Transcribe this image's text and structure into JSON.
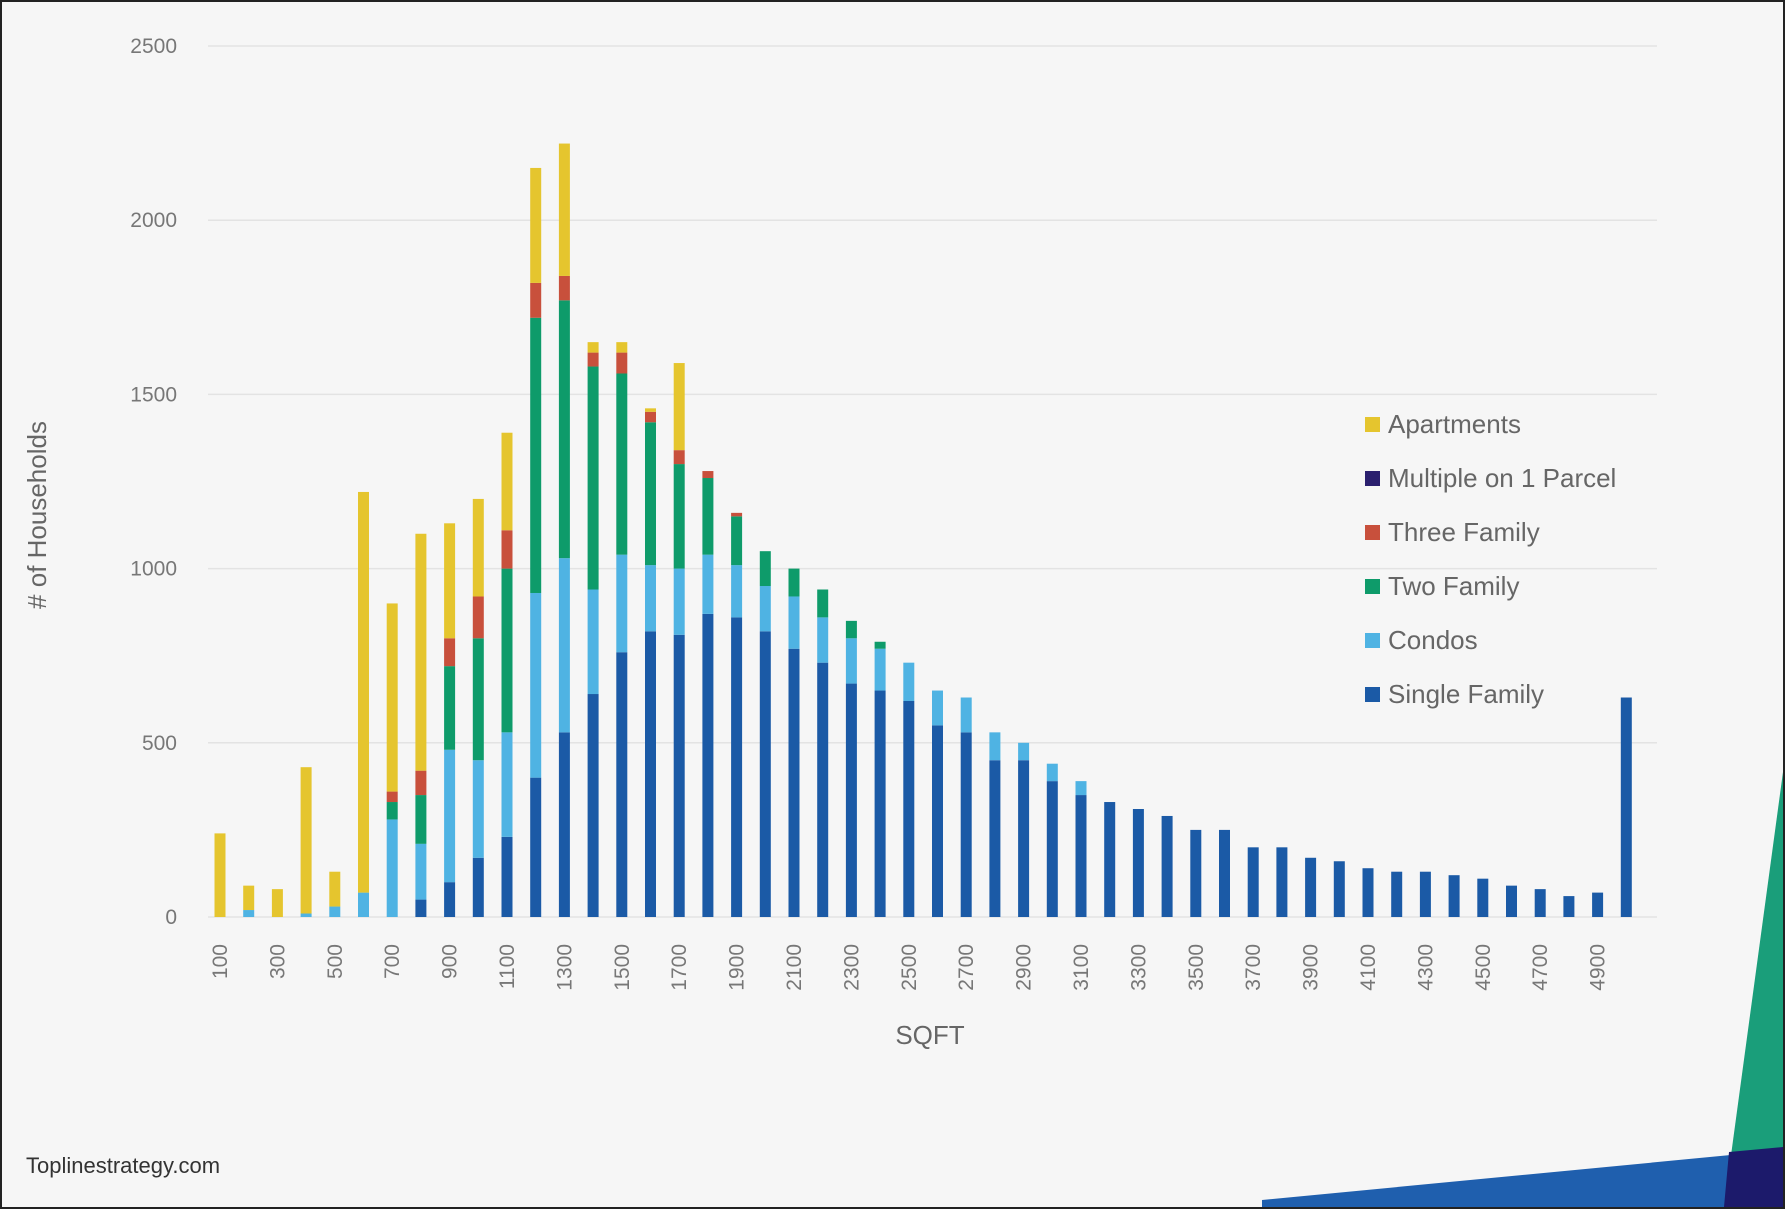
{
  "chart_data": {
    "type": "bar",
    "stacked": true,
    "xlabel": "SQFT",
    "ylabel": "# of Households",
    "ylim": [
      0,
      2500
    ],
    "yticks": [
      0,
      500,
      1000,
      1500,
      2000,
      2500
    ],
    "grid": true,
    "legend_position": "right",
    "source": "Toplinestrategy.com",
    "categories": [
      "100",
      "200",
      "300",
      "400",
      "500",
      "600",
      "700",
      "800",
      "900",
      "1000",
      "1100",
      "1200",
      "1300",
      "1400",
      "1500",
      "1600",
      "1700",
      "1800",
      "1900",
      "2000",
      "2100",
      "2200",
      "2300",
      "2400",
      "2500",
      "2600",
      "2700",
      "2800",
      "2900",
      "3000",
      "3100",
      "3200",
      "3300",
      "3400",
      "3500",
      "3600",
      "3700",
      "3800",
      "3900",
      "4000",
      "4100",
      "4200",
      "4300",
      "4400",
      "4500",
      "4600",
      "4700",
      "4800",
      "4900",
      "5000"
    ],
    "tick_labels": [
      "100",
      "300",
      "500",
      "700",
      "900",
      "1100",
      "1300",
      "1500",
      "1700",
      "1900",
      "2100",
      "2300",
      "2500",
      "2700",
      "2900",
      "3100",
      "3300",
      "3500",
      "3700",
      "3900",
      "4100",
      "4300",
      "4500",
      "4700",
      "4900"
    ],
    "series": [
      {
        "name": "Single Family",
        "color": "#1b5aa6",
        "values": [
          0,
          0,
          0,
          0,
          0,
          0,
          0,
          50,
          100,
          170,
          230,
          400,
          530,
          640,
          760,
          820,
          810,
          870,
          860,
          820,
          770,
          730,
          670,
          650,
          620,
          550,
          530,
          450,
          450,
          390,
          350,
          330,
          310,
          290,
          250,
          250,
          200,
          200,
          170,
          160,
          140,
          130,
          130,
          120,
          110,
          90,
          80,
          60,
          70,
          630
        ]
      },
      {
        "name": "Condos",
        "color": "#4fb3e3",
        "values": [
          0,
          20,
          0,
          10,
          30,
          70,
          280,
          160,
          380,
          280,
          300,
          530,
          500,
          300,
          280,
          190,
          190,
          170,
          150,
          130,
          150,
          130,
          130,
          120,
          110,
          100,
          100,
          80,
          50,
          50,
          40,
          0,
          0,
          0,
          0,
          0,
          0,
          0,
          0,
          0,
          0,
          0,
          0,
          0,
          0,
          0,
          0,
          0,
          0,
          0
        ]
      },
      {
        "name": "Two Family",
        "color": "#0e9b6a",
        "values": [
          0,
          0,
          0,
          0,
          0,
          0,
          50,
          140,
          240,
          350,
          470,
          790,
          740,
          640,
          520,
          410,
          300,
          220,
          140,
          100,
          80,
          80,
          50,
          20,
          0,
          0,
          0,
          0,
          0,
          0,
          0,
          0,
          0,
          0,
          0,
          0,
          0,
          0,
          0,
          0,
          0,
          0,
          0,
          0,
          0,
          0,
          0,
          0,
          0,
          0
        ]
      },
      {
        "name": "Three Family",
        "color": "#c8503c",
        "values": [
          0,
          0,
          0,
          0,
          0,
          0,
          30,
          70,
          80,
          120,
          110,
          100,
          70,
          40,
          60,
          30,
          40,
          20,
          10,
          0,
          0,
          0,
          0,
          0,
          0,
          0,
          0,
          0,
          0,
          0,
          0,
          0,
          0,
          0,
          0,
          0,
          0,
          0,
          0,
          0,
          0,
          0,
          0,
          0,
          0,
          0,
          0,
          0,
          0,
          0
        ]
      },
      {
        "name": "Multiple on 1 Parcel",
        "color": "#2a1f6e",
        "values": [
          0,
          0,
          0,
          0,
          0,
          0,
          0,
          0,
          0,
          0,
          0,
          0,
          0,
          0,
          0,
          0,
          0,
          0,
          0,
          0,
          0,
          0,
          0,
          0,
          0,
          0,
          0,
          0,
          0,
          0,
          0,
          0,
          0,
          0,
          0,
          0,
          0,
          0,
          0,
          0,
          0,
          0,
          0,
          0,
          0,
          0,
          0,
          0,
          0,
          0
        ]
      },
      {
        "name": "Apartments",
        "color": "#e5c52e",
        "values": [
          240,
          70,
          80,
          420,
          100,
          1150,
          540,
          680,
          330,
          280,
          280,
          330,
          380,
          30,
          30,
          10,
          250,
          0,
          0,
          0,
          0,
          0,
          0,
          0,
          0,
          0,
          0,
          0,
          0,
          0,
          0,
          0,
          0,
          0,
          0,
          0,
          0,
          0,
          0,
          0,
          0,
          0,
          0,
          0,
          0,
          0,
          0,
          0,
          0,
          0
        ]
      }
    ],
    "legend_order": [
      "Apartments",
      "Multiple on 1 Parcel",
      "Three Family",
      "Two Family",
      "Condos",
      "Single Family"
    ]
  },
  "decoration": {
    "green_color": "#1a9e7a",
    "navy_color": "#1c1a6b",
    "blue_color": "#1f5fae"
  }
}
